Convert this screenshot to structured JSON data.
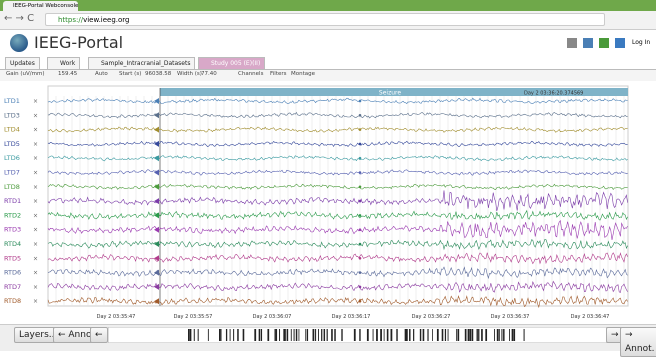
{
  "browser": {
    "tab_title": "IEEG-Portal Webconsole",
    "url_scheme": "https://",
    "url_host": "view.ieeg.org"
  },
  "header": {
    "title": "IEEG-Portal",
    "login": "Log In"
  },
  "tabs": [
    "Updates",
    "Work",
    "Sample_Intracranial_Datasets",
    "Study 005 (E)(II)"
  ],
  "toolbar": {
    "gain_label": "Gain (uV/mm)",
    "gain": "159.45",
    "auto": "Auto",
    "start_label": "Start (s)",
    "start": "96038.58",
    "width_label": "Width (s)",
    "width": "77.40",
    "buttons": [
      "Channels",
      "Filters",
      "Montage"
    ]
  },
  "annotation": {
    "label": "Seizure",
    "timestamp": "Day 2 03:36:20.374569"
  },
  "close_icon": "×",
  "channels": [
    {
      "name": "LTD1",
      "color": "#4a7fb5"
    },
    {
      "name": "LTD3",
      "color": "#5a6f8a"
    },
    {
      "name": "LTD4",
      "color": "#a08c2c"
    },
    {
      "name": "LTD5",
      "color": "#34489a"
    },
    {
      "name": "LTD6",
      "color": "#3a9aa0"
    },
    {
      "name": "LTD7",
      "color": "#5560b0"
    },
    {
      "name": "LTD8",
      "color": "#4a9a3a"
    },
    {
      "name": "RTD1",
      "color": "#7a3aa8"
    },
    {
      "name": "RTD2",
      "color": "#2a9a4a"
    },
    {
      "name": "RTD3",
      "color": "#9a3ab0"
    },
    {
      "name": "RTD4",
      "color": "#2a8a5a"
    },
    {
      "name": "RTD5",
      "color": "#b03a8a"
    },
    {
      "name": "RTD6",
      "color": "#5a6a9a"
    },
    {
      "name": "RTD7",
      "color": "#8a3aa0"
    },
    {
      "name": "RTD8",
      "color": "#a05a2a"
    }
  ],
  "time_labels": [
    "Day 2 03:35:47",
    "Day 2 03:35:57",
    "Day 2 03:36:07",
    "Day 2 03:36:17",
    "Day 2 03:36:27",
    "Day 2 03:36:37",
    "Day 2 03:36:47"
  ],
  "footer": {
    "layers": "Layers...",
    "prev_annot": "← Annot.",
    "prev": "←",
    "next": "→",
    "next_annot": "→ Annot."
  }
}
